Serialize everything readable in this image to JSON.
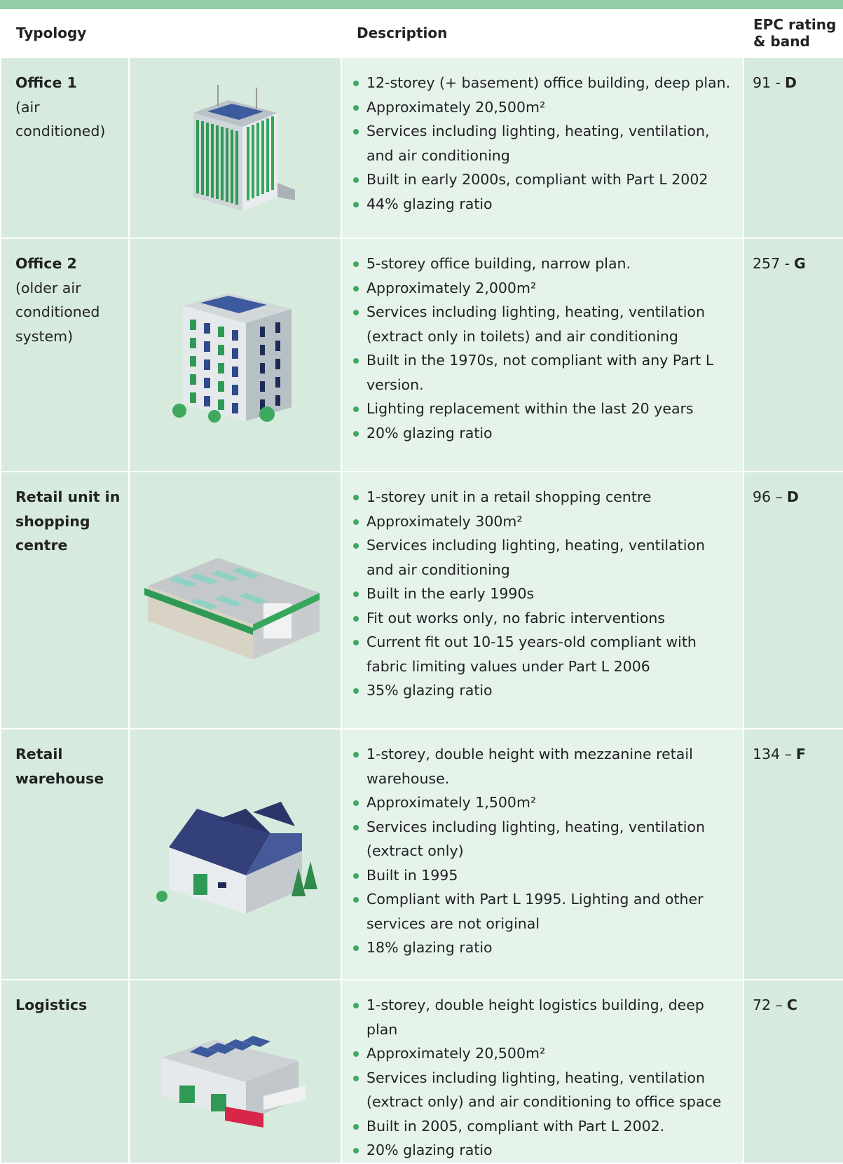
{
  "header": {
    "columns": [
      "Typology",
      "Description",
      "EPC rating & band"
    ]
  },
  "rows": [
    {
      "typology": {
        "name": "Office 1",
        "note": "(air conditioned)"
      },
      "description": [
        "12-storey (+ basement) office building, deep plan.",
        "Approximately 20,500m²",
        "Services including lighting, heating, ventilation, and air conditioning",
        "Built in early 2000s, compliant with Part L 2002",
        "44% glazing ratio"
      ],
      "epc": {
        "rating": "91 -",
        "band": "D"
      }
    },
    {
      "typology": {
        "name": "Office 2",
        "note": "(older air conditioned system)"
      },
      "description": [
        "5-storey office building, narrow plan.",
        "Approximately 2,000m²",
        "Services including lighting, heating, ventilation (extract only in toilets) and air conditioning",
        "Built in the 1970s, not compliant with any Part L version.",
        "Lighting replacement within the last 20 years",
        "20% glazing ratio"
      ],
      "epc": {
        "rating": "257 -",
        "band": "G"
      }
    },
    {
      "typology": {
        "name": "Retail unit in shopping centre"
      },
      "description": [
        "1-storey unit in a retail shopping centre",
        "Approximately 300m²",
        "Services including lighting, heating, ventilation and air conditioning",
        "Built in the early 1990s",
        "Fit out works only, no fabric interventions",
        "Current fit out 10-15 years-old compliant with fabric limiting values under Part L 2006",
        "35% glazing ratio"
      ],
      "epc": {
        "rating": "96 –",
        "band": "D"
      }
    },
    {
      "typology": {
        "name": "Retail warehouse"
      },
      "description": [
        "1-storey, double height with mezzanine retail warehouse.",
        "Approximately 1,500m²",
        "Services including lighting, heating, ventilation (extract only)",
        "Built in 1995",
        "Compliant with Part L 1995. Lighting and other services are not original",
        "18% glazing ratio"
      ],
      "epc": {
        "rating": "134 –",
        "band": "F"
      }
    },
    {
      "typology": {
        "name": "Logistics"
      },
      "description": [
        "1-storey, double height logistics building, deep plan",
        "Approximately 20,500m²",
        "Services including lighting, heating, ventilation (extract only) and air conditioning to office space",
        "Built in 2005, compliant with Part L 2002.",
        "20% glazing ratio"
      ],
      "epc": {
        "rating": "72 –",
        "band": "C"
      }
    }
  ]
}
